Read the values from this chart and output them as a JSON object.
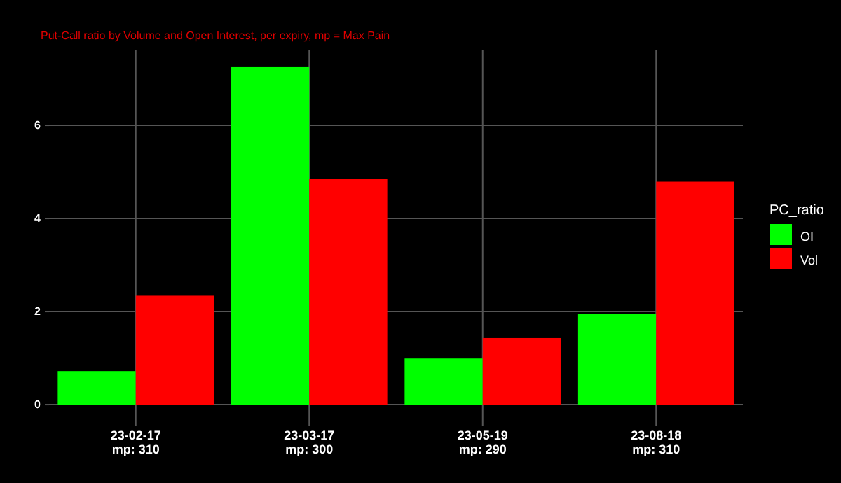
{
  "chart_data": {
    "type": "bar",
    "subtitle": "Put-Call ratio by Volume and Open Interest, per expiry, mp = Max Pain",
    "legend_title": "PC_ratio",
    "categories": [
      "23-02-17\nmp: 310",
      "23-03-17\nmp: 300",
      "23-05-19\nmp: 290",
      "23-08-18\nmp: 310"
    ],
    "series": [
      {
        "name": "OI",
        "color": "#00ff00",
        "values": [
          0.72,
          7.25,
          0.99,
          1.95
        ]
      },
      {
        "name": "Vol",
        "color": "#ff0000",
        "values": [
          2.34,
          4.85,
          1.43,
          4.79
        ]
      }
    ],
    "ylim": [
      -0.36,
      7.61
    ],
    "yticks": [
      0,
      2,
      4,
      6
    ],
    "grid": true,
    "legend": "right"
  }
}
